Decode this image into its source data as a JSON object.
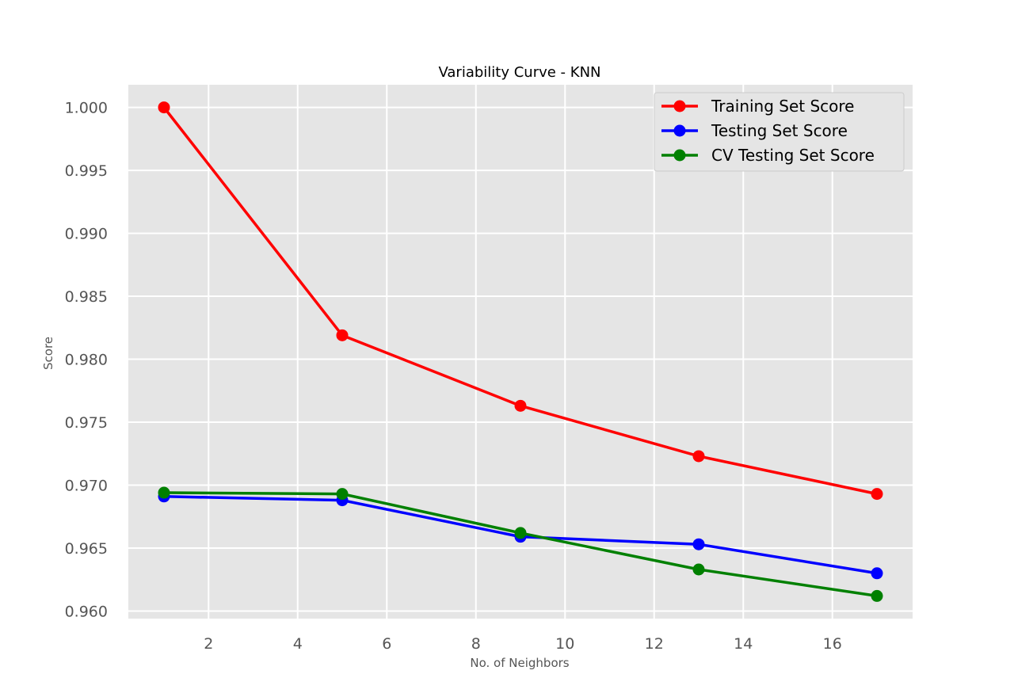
{
  "chart_data": {
    "type": "line",
    "title": "Variability Curve - KNN",
    "xlabel": "No. of Neighbors",
    "ylabel": "Score",
    "x": [
      1,
      5,
      9,
      13,
      17
    ],
    "xlim": [
      0.2,
      17.8
    ],
    "ylim": [
      0.9594,
      1.0018
    ],
    "xticks": [
      2,
      4,
      6,
      8,
      10,
      12,
      14,
      16
    ],
    "xtick_labels": [
      "2",
      "4",
      "6",
      "8",
      "10",
      "12",
      "14",
      "16"
    ],
    "yticks": [
      0.96,
      0.965,
      0.97,
      0.975,
      0.98,
      0.985,
      0.99,
      0.995,
      1.0
    ],
    "ytick_labels": [
      "0.960",
      "0.965",
      "0.970",
      "0.975",
      "0.980",
      "0.985",
      "0.990",
      "0.995",
      "1.000"
    ],
    "grid": true,
    "legend_position": "top-right",
    "series": [
      {
        "name": "Training Set Score",
        "color": "#ff0000",
        "values": [
          1.0,
          0.9819,
          0.9763,
          0.9723,
          0.9693
        ]
      },
      {
        "name": "Testing Set Score",
        "color": "#0000ff",
        "values": [
          0.9691,
          0.9688,
          0.9659,
          0.9653,
          0.963
        ]
      },
      {
        "name": "CV Testing Set Score",
        "color": "#008000",
        "values": [
          0.9694,
          0.9693,
          0.9662,
          0.9633,
          0.9612
        ]
      }
    ]
  }
}
